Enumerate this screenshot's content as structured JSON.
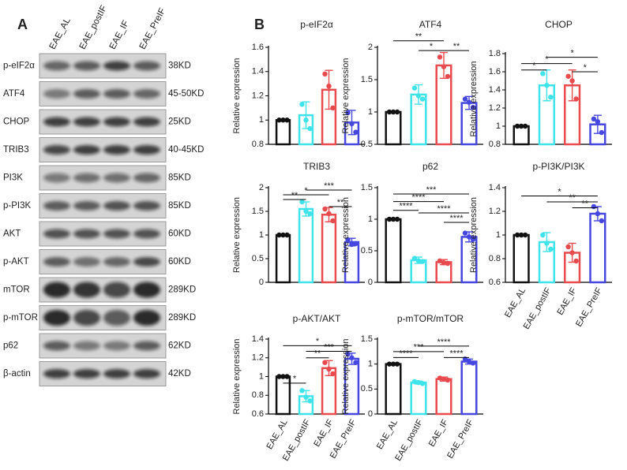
{
  "panel_labels": [
    "A",
    "B"
  ],
  "blot": {
    "columns": [
      "EAE_AL",
      "EAE_postIF",
      "EAE_IF",
      "EAE_PreIF"
    ],
    "rows": [
      {
        "protein": "p-eIF2α",
        "size": "38KD"
      },
      {
        "protein": "ATF4",
        "size": "45-50KD"
      },
      {
        "protein": "CHOP",
        "size": "25KD"
      },
      {
        "protein": "TRIB3",
        "size": "40-45KD"
      },
      {
        "protein": "PI3K",
        "size": "85KD"
      },
      {
        "protein": "p-PI3K",
        "size": "85KD"
      },
      {
        "protein": "AKT",
        "size": "60KD"
      },
      {
        "protein": "p-AKT",
        "size": "60KD"
      },
      {
        "protein": "mTOR",
        "size": "289KD"
      },
      {
        "protein": "p-mTOR",
        "size": "289KD"
      },
      {
        "protein": "p62",
        "size": "62KD"
      },
      {
        "protein": "β-actin",
        "size": "42KD"
      }
    ]
  },
  "chart_data": [
    {
      "type": "bar",
      "title": "p-eIF2α",
      "ylabel": "Relative expression",
      "categories": [
        null,
        null,
        null,
        null
      ],
      "colors": [
        "#111111",
        "#3fe3ea",
        "#e94a4d",
        "#4646e0"
      ],
      "values": [
        1.0,
        1.04,
        1.25,
        0.98
      ],
      "errors": [
        0,
        0.11,
        0.16,
        0.1
      ],
      "points": [
        [
          1.0,
          1.0,
          1.0
        ],
        [
          1.13,
          1.0,
          0.93
        ],
        [
          1.38,
          1.28,
          1.1
        ],
        [
          1.06,
          0.97,
          0.9
        ]
      ],
      "ylim": [
        0.8,
        1.6
      ],
      "yticks": [
        0.8,
        1.0,
        1.2,
        1.4,
        1.6
      ],
      "comparisons": []
    },
    {
      "type": "bar",
      "title": "ATF4",
      "ylabel": "Relative expression",
      "categories": [
        null,
        null,
        null,
        null
      ],
      "colors": [
        "#111111",
        "#3fe3ea",
        "#e94a4d",
        "#4646e0"
      ],
      "values": [
        1.0,
        1.27,
        1.72,
        1.14
      ],
      "errors": [
        0,
        0.15,
        0.2,
        0.1
      ],
      "points": [
        [
          1.0,
          1.0,
          1.0
        ],
        [
          1.37,
          1.25,
          1.2
        ],
        [
          1.85,
          1.7,
          1.55
        ],
        [
          1.2,
          1.15,
          1.07
        ]
      ],
      "ylim": [
        0.5,
        2.0
      ],
      "yticks": [
        0.5,
        1.0,
        1.5,
        2.0
      ],
      "comparisons": [
        {
          "between": [
            0,
            2
          ],
          "y": 2.1,
          "label": "**"
        },
        {
          "between": [
            1,
            2
          ],
          "y": 1.95,
          "label": "*"
        },
        {
          "between": [
            2,
            3
          ],
          "y": 1.95,
          "label": "**"
        }
      ]
    },
    {
      "type": "bar",
      "title": "CHOP",
      "ylabel": "Relative expression",
      "categories": [
        null,
        null,
        null,
        null
      ],
      "colors": [
        "#111111",
        "#3fe3ea",
        "#e94a4d",
        "#4646e0"
      ],
      "values": [
        1.0,
        1.45,
        1.45,
        1.02
      ],
      "errors": [
        0,
        0.17,
        0.17,
        0.1
      ],
      "points": [
        [
          1.0,
          1.0,
          1.0
        ],
        [
          1.58,
          1.45,
          1.32
        ],
        [
          1.55,
          1.5,
          1.3
        ],
        [
          1.08,
          1.05,
          0.93
        ]
      ],
      "ylim": [
        0.8,
        1.8
      ],
      "yticks": [
        0.8,
        1.0,
        1.2,
        1.4,
        1.6,
        1.8
      ],
      "comparisons": [
        {
          "between": [
            1,
            3
          ],
          "y": 1.76,
          "label": "*"
        },
        {
          "between": [
            0,
            2
          ],
          "y": 1.69,
          "label": "*"
        },
        {
          "between": [
            0,
            1
          ],
          "y": 1.62,
          "label": "*"
        },
        {
          "between": [
            2,
            3
          ],
          "y": 1.6,
          "label": "*"
        }
      ]
    },
    {
      "type": "bar",
      "title": "TRIB3",
      "ylabel": "Relative expression",
      "categories": [
        null,
        null,
        null,
        null
      ],
      "colors": [
        "#111111",
        "#3fe3ea",
        "#e94a4d",
        "#4646e0"
      ],
      "values": [
        1.0,
        1.55,
        1.43,
        0.85
      ],
      "errors": [
        0,
        0.15,
        0.15,
        0.08
      ],
      "points": [
        [
          1.0,
          1.0,
          1.0
        ],
        [
          1.7,
          1.5,
          1.45
        ],
        [
          1.55,
          1.45,
          1.3
        ],
        [
          0.9,
          0.8,
          0.82
        ]
      ],
      "ylim": [
        0.0,
        2.0
      ],
      "yticks": [
        0.0,
        0.5,
        1.0,
        1.5,
        2.0
      ],
      "comparisons": [
        {
          "between": [
            1,
            3
          ],
          "y": 1.95,
          "label": "***"
        },
        {
          "between": [
            0,
            2
          ],
          "y": 1.85,
          "label": "*"
        },
        {
          "between": [
            0,
            1
          ],
          "y": 1.75,
          "label": "**"
        },
        {
          "between": [
            2,
            3
          ],
          "y": 1.6,
          "label": "**"
        }
      ]
    },
    {
      "type": "bar",
      "title": "p62",
      "ylabel": "Relative expression",
      "categories": [
        null,
        null,
        null,
        null
      ],
      "colors": [
        "#111111",
        "#3fe3ea",
        "#e94a4d",
        "#4646e0"
      ],
      "values": [
        1.0,
        0.35,
        0.32,
        0.72
      ],
      "errors": [
        0,
        0.05,
        0.04,
        0.08
      ],
      "points": [
        [
          1.0,
          1.0,
          1.0
        ],
        [
          0.38,
          0.34,
          0.33
        ],
        [
          0.34,
          0.31,
          0.3
        ],
        [
          0.78,
          0.72,
          0.68
        ]
      ],
      "ylim": [
        0.0,
        1.5
      ],
      "yticks": [
        0.0,
        0.5,
        1.0,
        1.5
      ],
      "comparisons": [
        {
          "between": [
            0,
            3
          ],
          "y": 1.4,
          "label": "***"
        },
        {
          "between": [
            0,
            2
          ],
          "y": 1.28,
          "label": "****"
        },
        {
          "between": [
            0,
            1
          ],
          "y": 1.14,
          "label": "****"
        },
        {
          "between": [
            1,
            3
          ],
          "y": 1.1,
          "label": "****"
        },
        {
          "between": [
            2,
            3
          ],
          "y": 0.95,
          "label": "****"
        }
      ]
    },
    {
      "type": "bar",
      "title": "p-PI3K/PI3K",
      "ylabel": "Relative expression",
      "categories": [
        "EAE_AL",
        "EAE_postIF",
        "EAE_IF",
        "EAE_PreIF"
      ],
      "colors": [
        "#111111",
        "#3fe3ea",
        "#e94a4d",
        "#4646e0"
      ],
      "values": [
        1.0,
        0.94,
        0.85,
        1.18
      ],
      "errors": [
        0,
        0.08,
        0.08,
        0.06
      ],
      "points": [
        [
          1.0,
          1.0,
          1.0
        ],
        [
          1.0,
          0.93,
          0.88
        ],
        [
          0.9,
          0.85,
          0.78
        ],
        [
          1.24,
          1.18,
          1.12
        ]
      ],
      "ylim": [
        0.6,
        1.4
      ],
      "yticks": [
        0.6,
        0.8,
        1.0,
        1.2,
        1.4
      ],
      "comparisons": [
        {
          "between": [
            0,
            3
          ],
          "y": 1.33,
          "label": "*"
        },
        {
          "between": [
            1,
            3
          ],
          "y": 1.28,
          "label": "**"
        },
        {
          "between": [
            2,
            3
          ],
          "y": 1.23,
          "label": "**"
        }
      ]
    },
    {
      "type": "bar",
      "title": "p-AKT/AKT",
      "ylabel": "Relative expression",
      "categories": [
        "EAE_AL",
        "EAE_postIF",
        "EAE_IF",
        "EAE_PreIF"
      ],
      "colors": [
        "#111111",
        "#3fe3ea",
        "#e94a4d",
        "#4646e0"
      ],
      "values": [
        1.0,
        0.79,
        1.09,
        1.19
      ],
      "errors": [
        0,
        0.06,
        0.08,
        0.06
      ],
      "points": [
        [
          1.0,
          1.0,
          1.0
        ],
        [
          0.85,
          0.78,
          0.74
        ],
        [
          1.15,
          1.08,
          1.03
        ],
        [
          1.24,
          1.2,
          1.15
        ]
      ],
      "ylim": [
        0.6,
        1.4
      ],
      "yticks": [
        0.6,
        0.8,
        1.0,
        1.2,
        1.4
      ],
      "comparisons": [
        {
          "between": [
            0,
            3
          ],
          "y": 1.33,
          "label": "*"
        },
        {
          "between": [
            1,
            3
          ],
          "y": 1.27,
          "label": "***"
        },
        {
          "between": [
            1,
            2
          ],
          "y": 1.2,
          "label": "**"
        },
        {
          "between": [
            0,
            1
          ],
          "y": 0.93,
          "label": "*"
        }
      ]
    },
    {
      "type": "bar",
      "title": "p-mTOR/mTOR",
      "ylabel": "Relative expression",
      "categories": [
        "EAE_AL",
        "EAE_postIF",
        "EAE_IF",
        "EAE_PreIF"
      ],
      "colors": [
        "#111111",
        "#3fe3ea",
        "#e94a4d",
        "#4646e0"
      ],
      "values": [
        1.0,
        0.63,
        0.7,
        1.05
      ],
      "errors": [
        0,
        0.03,
        0.04,
        0.05
      ],
      "points": [
        [
          1.0,
          1.0,
          1.0
        ],
        [
          0.65,
          0.63,
          0.61
        ],
        [
          0.72,
          0.7,
          0.68
        ],
        [
          1.1,
          1.05,
          1.02
        ]
      ],
      "ylim": [
        0.0,
        1.5
      ],
      "yticks": [
        0.0,
        0.5,
        1.0,
        1.5
      ],
      "comparisons": [
        {
          "between": [
            1,
            3
          ],
          "y": 1.36,
          "label": "****"
        },
        {
          "between": [
            0,
            2
          ],
          "y": 1.25,
          "label": "***"
        },
        {
          "between": [
            0,
            1
          ],
          "y": 1.13,
          "label": "****"
        },
        {
          "between": [
            2,
            3
          ],
          "y": 1.13,
          "label": "****"
        }
      ]
    }
  ]
}
